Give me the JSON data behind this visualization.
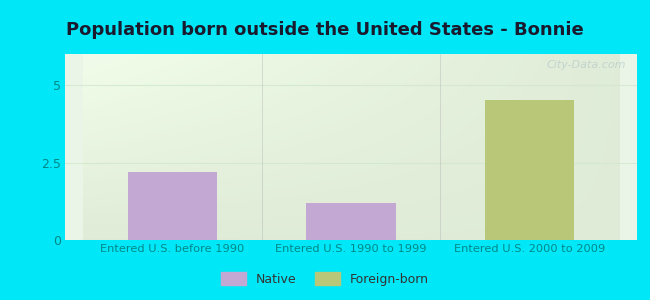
{
  "title": "Population born outside the United States - Bonnie",
  "categories": [
    "Entered U.S. before 1990",
    "Entered U.S. 1990 to 1999",
    "Entered U.S. 2000 to 2009"
  ],
  "native_values": [
    2.2,
    1.2,
    0
  ],
  "foreign_values": [
    0,
    0,
    4.5
  ],
  "native_color": "#c4a8d4",
  "foreign_color": "#b8c878",
  "background_color": "#00e8f8",
  "plot_bg_color": "#eaf5e8",
  "ylim": [
    0,
    6
  ],
  "yticks": [
    0,
    2.5,
    5
  ],
  "bar_width": 0.5,
  "legend_native": "Native",
  "legend_foreign": "Foreign-born",
  "watermark": "City-Data.com",
  "title_fontsize": 13,
  "title_color": "#1a1a2e",
  "axis_label_color": "#008888",
  "tick_label_color": "#008888",
  "grid_color": "#d0e8cc",
  "grid_alpha": 0.8
}
